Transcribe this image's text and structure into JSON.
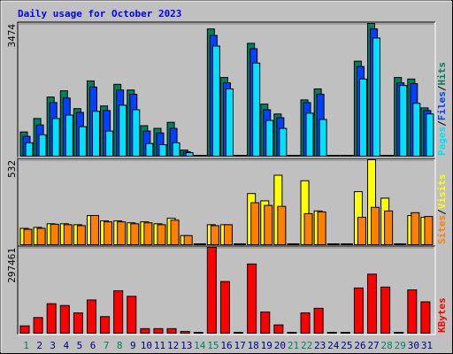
{
  "chart_data": [
    {
      "type": "bar",
      "title": "Daily usage for October 2023",
      "ylim": [
        0,
        3474
      ],
      "yticks": [
        3474
      ],
      "series": [
        {
          "name": "Hits",
          "color": "#00805c",
          "values": [
            615,
            970,
            1535,
            1700,
            1230,
            1960,
            1300,
            1870,
            1720,
            780,
            710,
            870,
            140,
            0,
            3330,
            2050,
            0,
            2950,
            1350,
            1090,
            0,
            1460,
            1750,
            0,
            0,
            2480,
            3474,
            0,
            2050,
            2010,
            1250
          ]
        },
        {
          "name": "Files",
          "color": "#0040ff",
          "values": [
            500,
            800,
            1390,
            1510,
            1130,
            1800,
            1180,
            1720,
            1610,
            640,
            590,
            710,
            95,
            0,
            3160,
            1910,
            0,
            2810,
            1200,
            990,
            0,
            1390,
            1610,
            0,
            0,
            2340,
            3330,
            0,
            1910,
            1890,
            1180
          ]
        },
        {
          "name": "Pages",
          "color": "#00e0ff",
          "values": [
            330,
            540,
            970,
            1060,
            755,
            1160,
            640,
            1320,
            1200,
            310,
            280,
            330,
            70,
            0,
            2880,
            1750,
            0,
            2430,
            920,
            710,
            0,
            1110,
            945,
            0,
            0,
            2010,
            3090,
            0,
            1840,
            1370,
            1090
          ]
        }
      ]
    },
    {
      "type": "bar",
      "ylim": [
        0,
        532
      ],
      "yticks": [
        532
      ],
      "series": [
        {
          "name": "Visits",
          "color": "#ffff00",
          "values": [
            98,
            104,
            127,
            127,
            121,
            179,
            145,
            145,
            133,
            139,
            127,
            162,
            52,
            0,
            121,
            121,
            0,
            318,
            272,
            434,
            0,
            399,
            208,
            0,
            0,
            330,
            532,
            289,
            0,
            179,
            168
          ]
        },
        {
          "name": "Sites",
          "color": "#ff8000",
          "values": [
            92,
            98,
            124,
            121,
            115,
            179,
            139,
            139,
            127,
            133,
            121,
            150,
            52,
            0,
            115,
            121,
            0,
            260,
            243,
            237,
            0,
            191,
            202,
            0,
            0,
            168,
            231,
            208,
            0,
            197,
            173
          ]
        }
      ]
    },
    {
      "type": "bar",
      "ylim": [
        0,
        297461
      ],
      "yticks": [
        297461
      ],
      "categories": [
        "1",
        "2",
        "3",
        "4",
        "5",
        "6",
        "7",
        "8",
        "9",
        "10",
        "11",
        "12",
        "13",
        "14",
        "15",
        "16",
        "17",
        "18",
        "19",
        "20",
        "21",
        "22",
        "23",
        "24",
        "25",
        "26",
        "27",
        "28",
        "29",
        "30",
        "31"
      ],
      "weekend_indices": [
        0,
        6,
        7,
        13,
        14,
        20,
        21,
        27,
        28
      ],
      "weekday_color": "#000080",
      "weekend_color": "#00805c",
      "series": [
        {
          "name": "KBytes",
          "color": "#ff0000",
          "values": [
            22600,
            51700,
            100200,
            93800,
            67900,
            113200,
            55000,
            145500,
            126100,
            12900,
            12900,
            12900,
            3200,
            0,
            297461,
            177800,
            0,
            239300,
            71100,
            25900,
            0,
            67900,
            84100,
            0,
            0,
            155200,
            203700,
            158400,
            0,
            148700,
            106700
          ]
        }
      ]
    }
  ]
}
